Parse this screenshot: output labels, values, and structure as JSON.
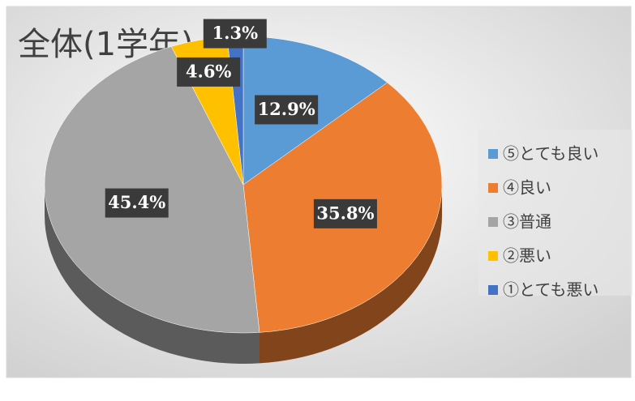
{
  "chart_data": {
    "type": "pie",
    "title": "全体(1学年)",
    "categories": [
      "⑤とても良い",
      "④良い",
      "③普通",
      "②悪い",
      "①とても悪い"
    ],
    "values": [
      12.9,
      35.8,
      45.4,
      4.6,
      1.3
    ],
    "value_labels": [
      "12.9%",
      "35.8%",
      "45.4%",
      "4.6%",
      "1.3%"
    ],
    "colors": [
      "#5b9bd5",
      "#ed7d31",
      "#a5a5a5",
      "#ffc000",
      "#4472c4"
    ],
    "legend": "right"
  }
}
